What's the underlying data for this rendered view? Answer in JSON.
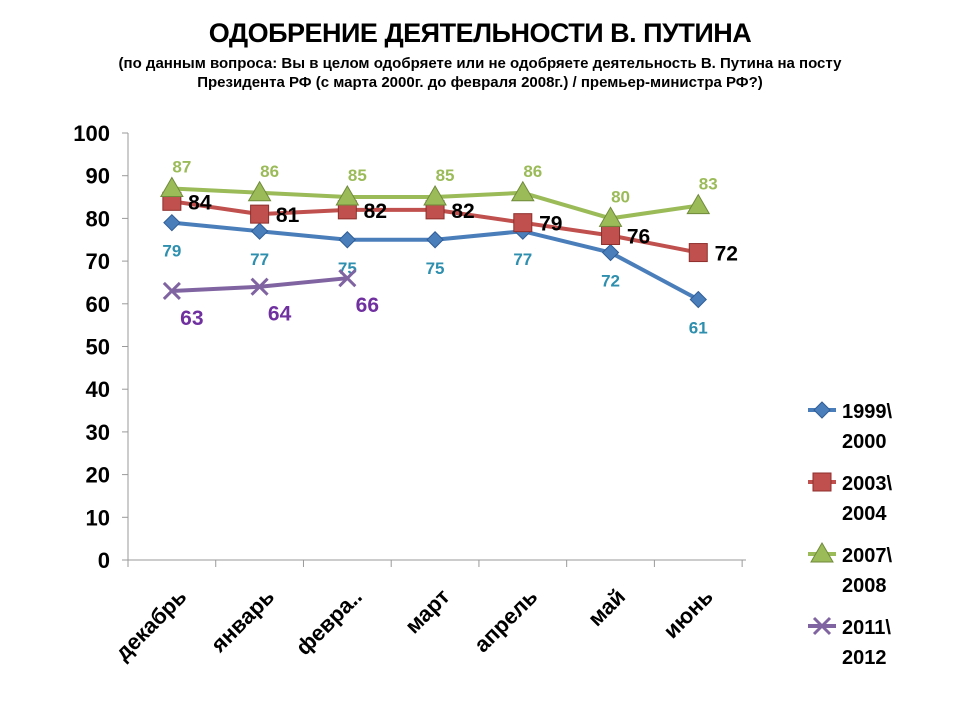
{
  "title": "ОДОБРЕНИЕ ДЕЯТЕЛЬНОСТИ В. ПУТИНА",
  "subtitle": "(по данным вопроса: Вы в целом одобряете или не одобряете деятельность В. Путина на посту Президента РФ (с марта 2000г. до февраля 2008г.) / премьер-министра РФ?)",
  "chart_data": {
    "type": "line",
    "title": "ОДОБРЕНИЕ ДЕЯТЕЛЬНОСТИ В. ПУТИНА",
    "xlabel": "",
    "ylabel": "",
    "ylim": [
      0,
      100
    ],
    "yticks": [
      0,
      10,
      20,
      30,
      40,
      50,
      60,
      70,
      80,
      90,
      100
    ],
    "grid": false,
    "legend_position": "right",
    "categories": [
      "декабрь",
      "январь",
      "февра..",
      "март",
      "апрель",
      "май",
      "июнь"
    ],
    "series": [
      {
        "name": "1999\\ 2000",
        "color": "#4a7ebb",
        "label_color": "#2e8fae",
        "marker": "diamond",
        "values": [
          79,
          77,
          75,
          75,
          77,
          72,
          61
        ]
      },
      {
        "name": "2003\\ 2004",
        "color": "#c0504d",
        "label_color": "#000000",
        "marker": "square",
        "values": [
          84,
          81,
          82,
          82,
          79,
          76,
          72
        ]
      },
      {
        "name": "2007\\ 2008",
        "color": "#9bbb59",
        "label_color": "#9bbb59",
        "marker": "triangle",
        "values": [
          87,
          86,
          85,
          85,
          86,
          80,
          83
        ]
      },
      {
        "name": "2011\\ 2012",
        "color": "#8064a2",
        "label_color": "#7030a0",
        "marker": "x",
        "values": [
          63,
          64,
          66,
          null,
          null,
          null,
          null
        ]
      }
    ]
  }
}
